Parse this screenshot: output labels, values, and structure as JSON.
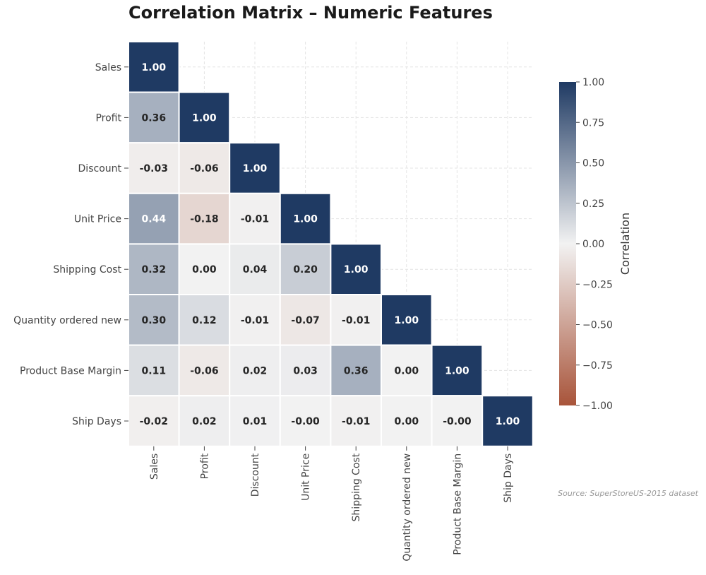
{
  "chart_data": {
    "type": "heatmap",
    "title": "Correlation Matrix – Numeric Features",
    "variables": [
      "Sales",
      "Profit",
      "Discount",
      "Unit Price",
      "Shipping Cost",
      "Quantity ordered new",
      "Product Base Margin",
      "Ship Days"
    ],
    "matrix_lower": [
      [
        "1.00"
      ],
      [
        "0.36",
        "1.00"
      ],
      [
        "-0.03",
        "-0.06",
        "1.00"
      ],
      [
        "0.44",
        "-0.18",
        "-0.01",
        "1.00"
      ],
      [
        "0.32",
        "0.00",
        "0.04",
        "0.20",
        "1.00"
      ],
      [
        "0.30",
        "0.12",
        "-0.01",
        "-0.07",
        "-0.01",
        "1.00"
      ],
      [
        "0.11",
        "-0.06",
        "0.02",
        "0.03",
        "0.36",
        "0.00",
        "1.00"
      ],
      [
        "-0.02",
        "0.02",
        "0.01",
        "-0.00",
        "-0.01",
        "0.00",
        "-0.00",
        "1.00"
      ]
    ],
    "mask": "upper triangle",
    "vlim": [
      -1,
      1
    ],
    "colormap": {
      "negative": "#a8543a",
      "center": "#f2f2f2",
      "positive": "#1f3a63"
    },
    "colorbar": {
      "label": "Correlation",
      "ticks": [
        "1.00",
        "0.75",
        "0.50",
        "0.25",
        "0.00",
        "−0.25",
        "−0.50",
        "−0.75",
        "−1.00"
      ]
    },
    "grid": true,
    "source_note": "Source: SuperStoreUS-2015 dataset"
  }
}
